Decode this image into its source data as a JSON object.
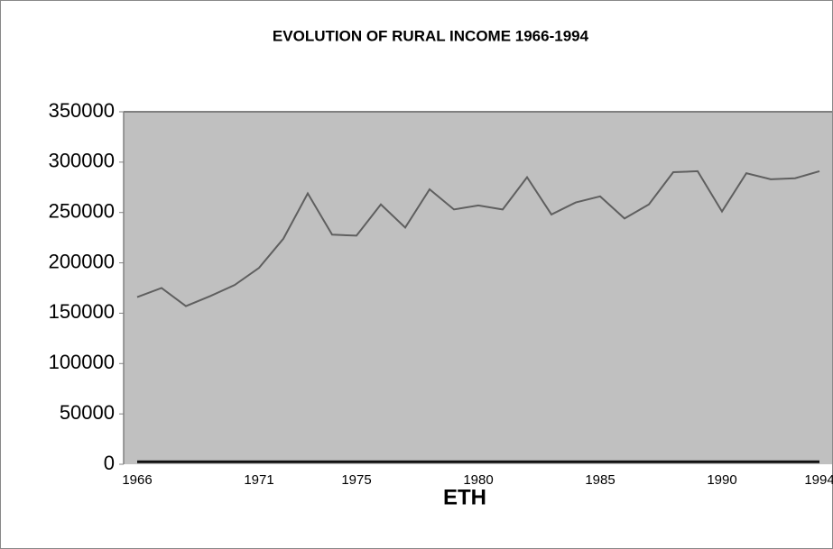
{
  "chart_data": {
    "type": "line",
    "title": "EVOLUTION OF RURAL INCOME 1966-1994",
    "x_label": "ETH",
    "x": [
      1966,
      1967,
      1968,
      1969,
      1970,
      1971,
      1972,
      1973,
      1974,
      1975,
      1976,
      1977,
      1978,
      1979,
      1980,
      1981,
      1982,
      1983,
      1984,
      1985,
      1986,
      1987,
      1988,
      1989,
      1990,
      1991,
      1992,
      1993,
      1994
    ],
    "series": [
      {
        "color": "#5f5f5f",
        "values": [
          166000,
          175000,
          157000,
          167000,
          178000,
          195000,
          224000,
          269000,
          228000,
          227000,
          258000,
          235000,
          273000,
          253000,
          257000,
          253000,
          285000,
          248000,
          260000,
          266000,
          244000,
          258000,
          290000,
          291000,
          251000,
          289000,
          283000,
          284000,
          291000
        ]
      },
      {
        "color": "#111111",
        "values": [
          2500,
          2500,
          2500,
          2500,
          2500,
          2500,
          2500,
          2500,
          2500,
          2500,
          2500,
          2500,
          2500,
          2500,
          2500,
          2500,
          2500,
          2500,
          2500,
          2500,
          2500,
          2500,
          2500,
          2500,
          2500,
          2500,
          2500,
          2500,
          2500
        ]
      }
    ],
    "xlim": [
      1966,
      1994
    ],
    "xticks": [
      1966,
      1971,
      1975,
      1980,
      1985,
      1990,
      1994
    ],
    "ylim": [
      0,
      350000
    ],
    "yticks": [
      0,
      50000,
      100000,
      150000,
      200000,
      250000,
      300000,
      350000
    ],
    "plot_background": "#c0c0c0"
  }
}
